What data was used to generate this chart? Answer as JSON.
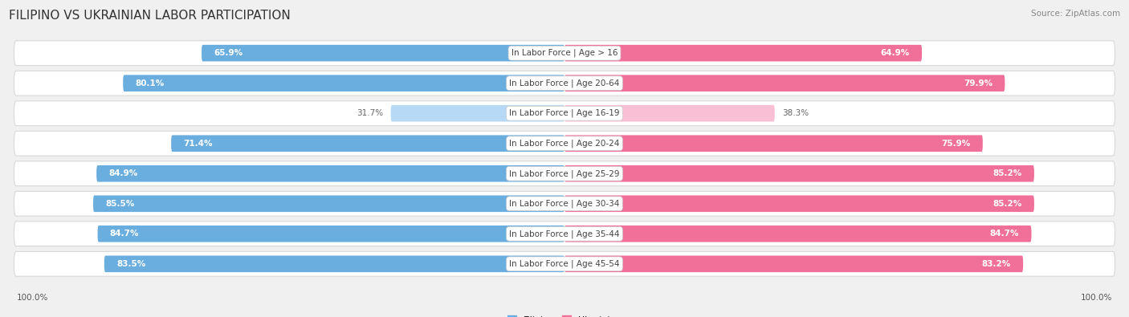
{
  "title": "FILIPINO VS UKRAINIAN LABOR PARTICIPATION",
  "source": "Source: ZipAtlas.com",
  "categories": [
    "In Labor Force | Age > 16",
    "In Labor Force | Age 20-64",
    "In Labor Force | Age 16-19",
    "In Labor Force | Age 20-24",
    "In Labor Force | Age 25-29",
    "In Labor Force | Age 30-34",
    "In Labor Force | Age 35-44",
    "In Labor Force | Age 45-54"
  ],
  "filipino_values": [
    65.9,
    80.1,
    31.7,
    71.4,
    84.9,
    85.5,
    84.7,
    83.5
  ],
  "ukrainian_values": [
    64.9,
    79.9,
    38.3,
    75.9,
    85.2,
    85.2,
    84.7,
    83.2
  ],
  "filipino_color": "#6aaee0",
  "ukrainian_color": "#f07099",
  "filipino_light_color": "#b8d9f5",
  "ukrainian_light_color": "#f9c0d5",
  "bg_color": "#f0f0f0",
  "row_bg_color": "#ffffff",
  "row_border_color": "#d8d8d8",
  "label_text_color": "#555555",
  "cat_label_color": "#444444",
  "value_color_inside": "#ffffff",
  "value_color_outside": "#666666",
  "max_value": 100.0,
  "threshold": 50.0,
  "title_fontsize": 11,
  "label_fontsize": 7.5,
  "value_fontsize": 7.5,
  "source_fontsize": 7.5,
  "cat_fontsize": 7.5
}
